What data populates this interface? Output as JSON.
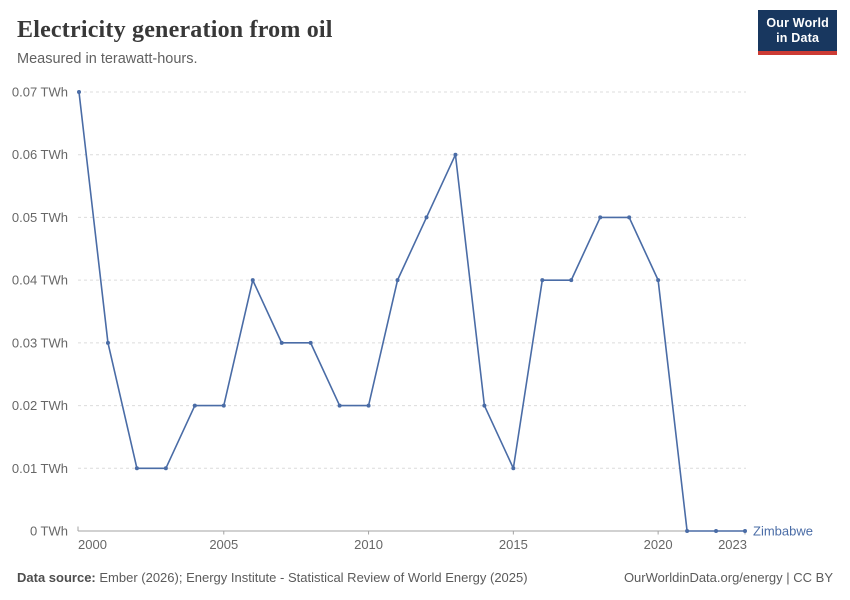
{
  "header": {
    "title": "Electricity generation from oil",
    "subtitle": "Measured in terawatt-hours.",
    "logo": {
      "line1": "Our World",
      "line2": "in Data",
      "background_color": "#18375f",
      "bar_color": "#cc3b34"
    }
  },
  "chart_data": {
    "type": "line",
    "title": "Electricity generation from oil",
    "subtitle": "Measured in terawatt-hours.",
    "unit": "TWh",
    "x": [
      2000,
      2001,
      2002,
      2003,
      2004,
      2005,
      2006,
      2007,
      2008,
      2009,
      2010,
      2011,
      2012,
      2013,
      2014,
      2015,
      2016,
      2017,
      2018,
      2019,
      2020,
      2021,
      2022,
      2023
    ],
    "series": [
      {
        "name": "Zimbabwe",
        "color": "#4a6ca6",
        "values": [
          0.07,
          0.03,
          0.01,
          0.01,
          0.02,
          0.02,
          0.04,
          0.03,
          0.03,
          0.02,
          0.02,
          0.04,
          0.05,
          0.06,
          0.02,
          0.01,
          0.04,
          0.04,
          0.05,
          0.05,
          0.04,
          0,
          0,
          0
        ]
      }
    ],
    "xlim": [
      2000,
      2023
    ],
    "ylim": [
      0,
      0.07
    ],
    "yticks": [
      {
        "value": 0,
        "label": "0 TWh"
      },
      {
        "value": 0.01,
        "label": "0.01 TWh"
      },
      {
        "value": 0.02,
        "label": "0.02 TWh"
      },
      {
        "value": 0.03,
        "label": "0.03 TWh"
      },
      {
        "value": 0.04,
        "label": "0.04 TWh"
      },
      {
        "value": 0.05,
        "label": "0.05 TWh"
      },
      {
        "value": 0.06,
        "label": "0.06 TWh"
      },
      {
        "value": 0.07,
        "label": "0.07 TWh"
      }
    ],
    "xticks": [
      2000,
      2005,
      2010,
      2015,
      2020,
      2023
    ],
    "grid": "horizontal-dashed",
    "legend_position": "end-of-line-label"
  },
  "footer": {
    "source_label": "Data source:",
    "source_text": " Ember (2026); Energy Institute - Statistical Review of World Energy (2025)",
    "right_text": "OurWorldinData.org/energy | CC BY"
  }
}
